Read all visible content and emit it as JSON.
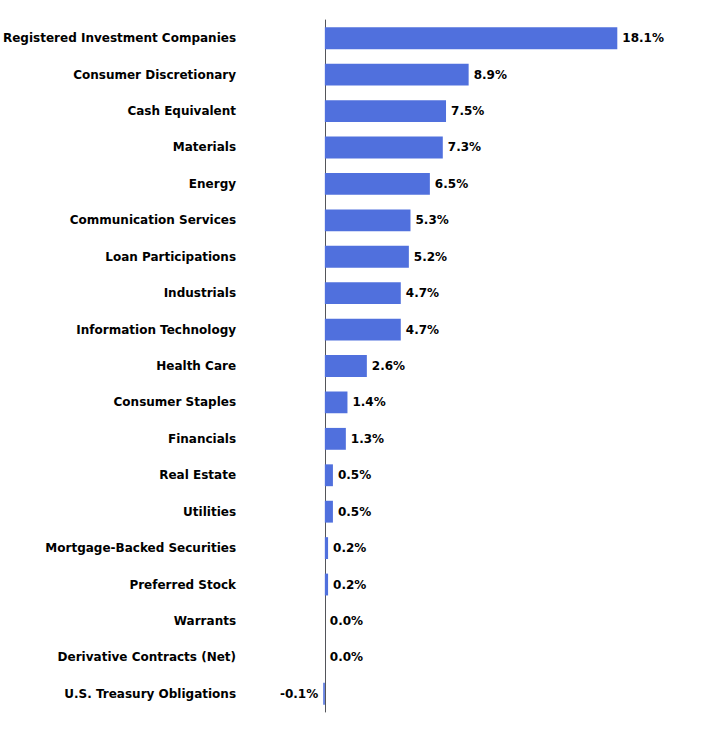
{
  "chart_data": {
    "type": "bar",
    "orientation": "horizontal",
    "categories": [
      "Registered Investment Companies",
      "Consumer Discretionary",
      "Cash Equivalent",
      "Materials",
      "Energy",
      "Communication Services",
      "Loan Participations",
      "Industrials",
      "Information Technology",
      "Health Care",
      "Consumer Staples",
      "Financials",
      "Real Estate",
      "Utilities",
      "Mortgage-Backed Securities",
      "Preferred Stock",
      "Warrants",
      "Derivative Contracts (Net)",
      "U.S. Treasury Obligations"
    ],
    "values": [
      18.1,
      8.9,
      7.5,
      7.3,
      6.5,
      5.3,
      5.2,
      4.7,
      4.7,
      2.6,
      1.4,
      1.3,
      0.5,
      0.5,
      0.2,
      0.2,
      0.0,
      0.0,
      -0.1
    ],
    "value_labels": [
      "18.1%",
      "8.9%",
      "7.5%",
      "7.3%",
      "6.5%",
      "5.3%",
      "5.2%",
      "4.7%",
      "4.7%",
      "2.6%",
      "1.4%",
      "1.3%",
      "0.5%",
      "0.5%",
      "0.2%",
      "0.2%",
      "0.0%",
      "0.0%",
      "-0.1%"
    ],
    "data_labels": true,
    "xlim": [
      -5,
      20
    ],
    "xticks": [
      -5,
      0,
      5,
      10,
      15,
      20
    ],
    "grid": false,
    "tick_labels": "y"
  }
}
